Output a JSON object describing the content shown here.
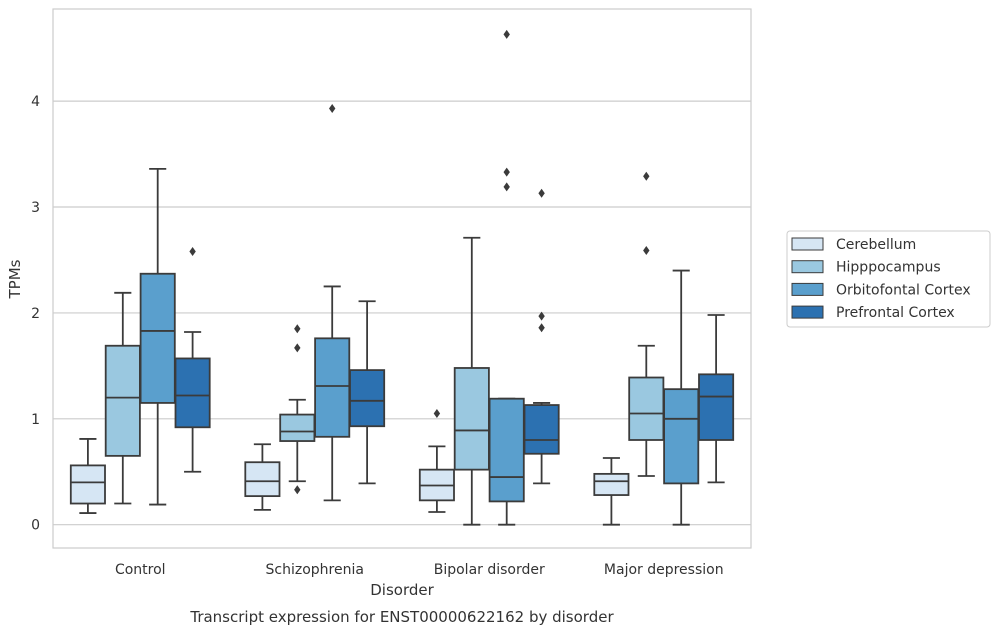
{
  "chart_data": {
    "type": "box",
    "title": "",
    "caption": "Transcript expression for ENST00000622162 by disorder",
    "xlabel": "Disorder",
    "ylabel": "TPMs",
    "ylim": [
      -0.22,
      4.87
    ],
    "yticks": [
      0,
      1,
      2,
      3,
      4
    ],
    "grid": "y",
    "legend_position": "right",
    "categories": [
      "Control",
      "Schizophrenia",
      "Bipolar disorder",
      "Major depression"
    ],
    "series": [
      {
        "name": "Cerebellum",
        "color": "#d6e6f4",
        "boxes": [
          {
            "whisker_low": 0.11,
            "q1": 0.2,
            "median": 0.4,
            "q3": 0.56,
            "whisker_high": 0.81,
            "outliers": []
          },
          {
            "whisker_low": 0.14,
            "q1": 0.27,
            "median": 0.41,
            "q3": 0.59,
            "whisker_high": 0.76,
            "outliers": []
          },
          {
            "whisker_low": 0.12,
            "q1": 0.23,
            "median": 0.37,
            "q3": 0.52,
            "whisker_high": 0.74,
            "outliers": [
              1.05
            ]
          },
          {
            "whisker_low": 0.0,
            "q1": 0.28,
            "median": 0.41,
            "q3": 0.48,
            "whisker_high": 0.63,
            "outliers": []
          }
        ]
      },
      {
        "name": "Hipppocampus",
        "color": "#9ac8e0",
        "boxes": [
          {
            "whisker_low": 0.2,
            "q1": 0.65,
            "median": 1.2,
            "q3": 1.69,
            "whisker_high": 2.19,
            "outliers": []
          },
          {
            "whisker_low": 0.41,
            "q1": 0.79,
            "median": 0.88,
            "q3": 1.04,
            "whisker_high": 1.18,
            "outliers": [
              1.85,
              1.67,
              0.33
            ]
          },
          {
            "whisker_low": 0.0,
            "q1": 0.52,
            "median": 0.89,
            "q3": 1.48,
            "whisker_high": 2.71,
            "outliers": []
          },
          {
            "whisker_low": 0.46,
            "q1": 0.8,
            "median": 1.05,
            "q3": 1.39,
            "whisker_high": 1.69,
            "outliers": [
              3.29,
              2.59
            ]
          }
        ]
      },
      {
        "name": "Orbitofontal Cortex",
        "color": "#5a9fcd",
        "boxes": [
          {
            "whisker_low": 0.19,
            "q1": 1.15,
            "median": 1.83,
            "q3": 2.37,
            "whisker_high": 3.36,
            "outliers": []
          },
          {
            "whisker_low": 0.23,
            "q1": 0.83,
            "median": 1.31,
            "q3": 1.76,
            "whisker_high": 2.25,
            "outliers": [
              3.93
            ]
          },
          {
            "whisker_low": 0.0,
            "q1": 0.22,
            "median": 0.45,
            "q3": 1.19,
            "whisker_high": 1.19,
            "outliers": [
              4.63,
              3.33,
              3.19
            ]
          },
          {
            "whisker_low": 0.0,
            "q1": 0.39,
            "median": 1.0,
            "q3": 1.28,
            "whisker_high": 2.4,
            "outliers": []
          }
        ]
      },
      {
        "name": "Prefrontal Cortex",
        "color": "#2c71b1",
        "boxes": [
          {
            "whisker_low": 0.5,
            "q1": 0.92,
            "median": 1.22,
            "q3": 1.57,
            "whisker_high": 1.82,
            "outliers": [
              2.58
            ]
          },
          {
            "whisker_low": 0.39,
            "q1": 0.93,
            "median": 1.17,
            "q3": 1.46,
            "whisker_high": 2.11,
            "outliers": []
          },
          {
            "whisker_low": 0.39,
            "q1": 0.67,
            "median": 0.8,
            "q3": 1.13,
            "whisker_high": 1.15,
            "outliers": [
              3.13,
              1.97,
              1.86
            ]
          },
          {
            "whisker_low": 0.4,
            "q1": 0.8,
            "median": 1.21,
            "q3": 1.42,
            "whisker_high": 1.98,
            "outliers": []
          }
        ]
      }
    ]
  }
}
